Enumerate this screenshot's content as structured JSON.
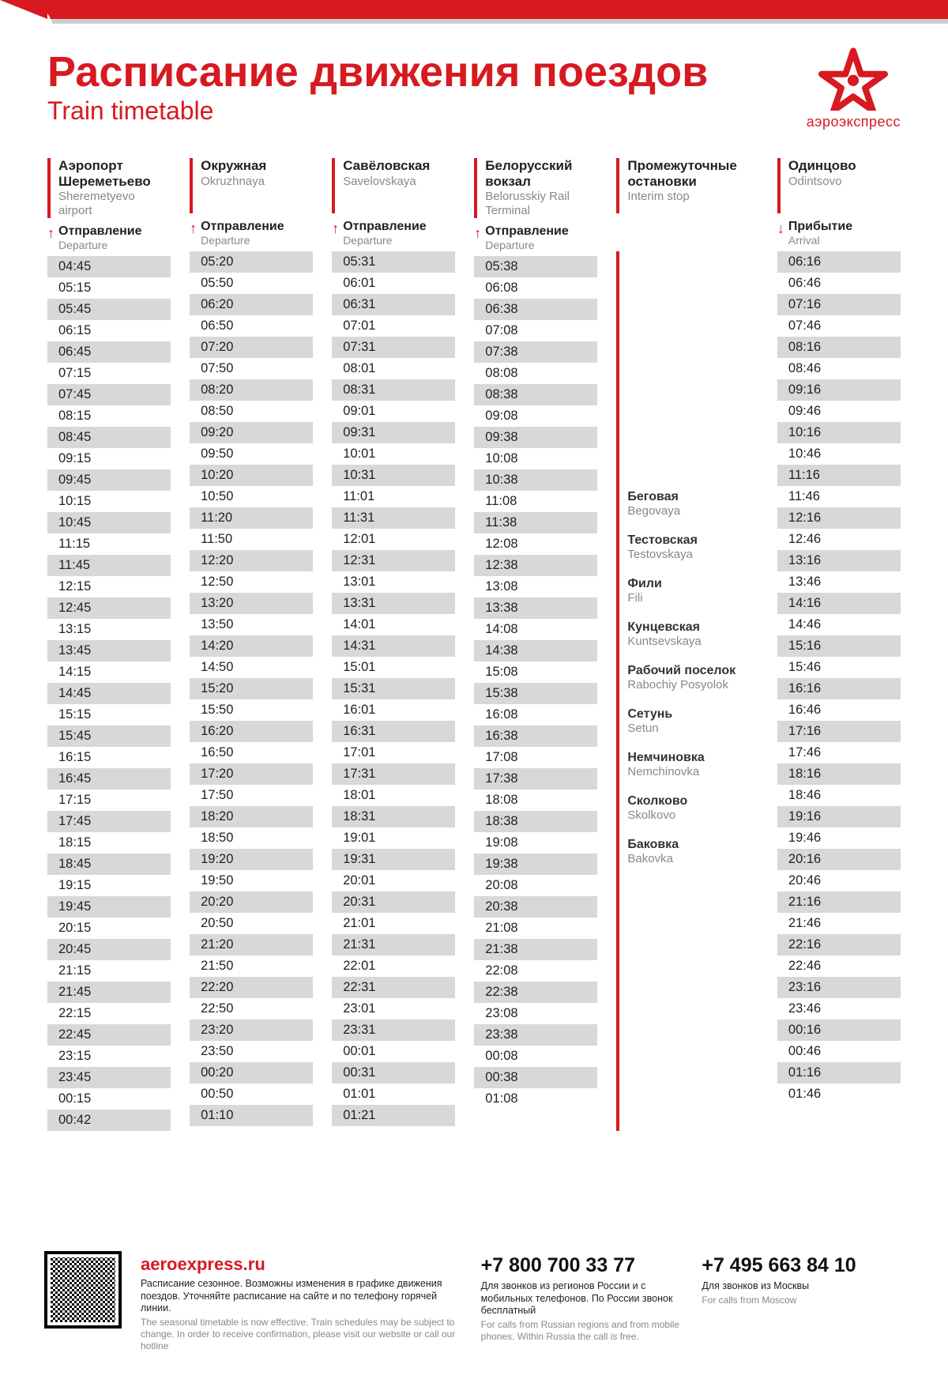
{
  "header": {
    "title_ru": "Расписание движения поездов",
    "title_en": "Train timetable",
    "logo_label": "аэроэкспресс",
    "brand_color": "#d71920"
  },
  "columns": [
    {
      "key": "sheremetyevo",
      "station_ru": "Аэропорт Шереметьево",
      "station_en": "Sheremetyevo airport",
      "sub_ru": "Отправление",
      "sub_en": "Departure",
      "arrow": "up",
      "times": [
        "04:45",
        "05:15",
        "05:45",
        "06:15",
        "06:45",
        "07:15",
        "07:45",
        "08:15",
        "08:45",
        "09:15",
        "09:45",
        "10:15",
        "10:45",
        "11:15",
        "11:45",
        "12:15",
        "12:45",
        "13:15",
        "13:45",
        "14:15",
        "14:45",
        "15:15",
        "15:45",
        "16:15",
        "16:45",
        "17:15",
        "17:45",
        "18:15",
        "18:45",
        "19:15",
        "19:45",
        "20:15",
        "20:45",
        "21:15",
        "21:45",
        "22:15",
        "22:45",
        "23:15",
        "23:45",
        "00:15",
        "00:42"
      ]
    },
    {
      "key": "okruzhnaya",
      "station_ru": "Окружная",
      "station_en": "Okruzhnaya",
      "sub_ru": "Отправление",
      "sub_en": "Departure",
      "arrow": "up",
      "times": [
        "05:20",
        "05:50",
        "06:20",
        "06:50",
        "07:20",
        "07:50",
        "08:20",
        "08:50",
        "09:20",
        "09:50",
        "10:20",
        "10:50",
        "11:20",
        "11:50",
        "12:20",
        "12:50",
        "13:20",
        "13:50",
        "14:20",
        "14:50",
        "15:20",
        "15:50",
        "16:20",
        "16:50",
        "17:20",
        "17:50",
        "18:20",
        "18:50",
        "19:20",
        "19:50",
        "20:20",
        "20:50",
        "21:20",
        "21:50",
        "22:20",
        "22:50",
        "23:20",
        "23:50",
        "00:20",
        "00:50",
        "01:10"
      ]
    },
    {
      "key": "savelovskaya",
      "station_ru": "Савёловская",
      "station_en": "Savelovskaya",
      "sub_ru": "Отправление",
      "sub_en": "Departure",
      "arrow": "up",
      "times": [
        "05:31",
        "06:01",
        "06:31",
        "07:01",
        "07:31",
        "08:01",
        "08:31",
        "09:01",
        "09:31",
        "10:01",
        "10:31",
        "11:01",
        "11:31",
        "12:01",
        "12:31",
        "13:01",
        "13:31",
        "14:01",
        "14:31",
        "15:01",
        "15:31",
        "16:01",
        "16:31",
        "17:01",
        "17:31",
        "18:01",
        "18:31",
        "19:01",
        "19:31",
        "20:01",
        "20:31",
        "21:01",
        "21:31",
        "22:01",
        "22:31",
        "23:01",
        "23:31",
        "00:01",
        "00:31",
        "01:01",
        "01:21"
      ]
    },
    {
      "key": "belorusskiy",
      "station_ru": "Белорусский вокзал",
      "station_en": "Belorusskiy Rail Terminal",
      "sub_ru": "Отправление",
      "sub_en": "Departure",
      "arrow": "up",
      "times": [
        "05:38",
        "06:08",
        "06:38",
        "07:08",
        "07:38",
        "08:08",
        "08:38",
        "09:08",
        "09:38",
        "10:08",
        "10:38",
        "11:08",
        "11:38",
        "12:08",
        "12:38",
        "13:08",
        "13:38",
        "14:08",
        "14:38",
        "15:08",
        "15:38",
        "16:08",
        "16:38",
        "17:08",
        "17:38",
        "18:08",
        "18:38",
        "19:08",
        "19:38",
        "20:08",
        "20:38",
        "21:08",
        "21:38",
        "22:08",
        "22:38",
        "23:08",
        "23:38",
        "00:08",
        "00:38",
        "01:08"
      ]
    },
    {
      "key": "interim",
      "station_ru": "Промежуточные остановки",
      "station_en": "Interim stop",
      "interim": true,
      "stops": [
        {
          "ru": "Беговая",
          "en": "Begovaya"
        },
        {
          "ru": "Тестовская",
          "en": "Testovskaya"
        },
        {
          "ru": "Фили",
          "en": "Fili"
        },
        {
          "ru": "Кунцевская",
          "en": "Kuntsevskaya"
        },
        {
          "ru": "Рабочий поселок",
          "en": "Rabochiy Posyolok"
        },
        {
          "ru": "Сетунь",
          "en": "Setun"
        },
        {
          "ru": "Немчиновка",
          "en": "Nemchinovka"
        },
        {
          "ru": "Сколково",
          "en": "Skolkovo"
        },
        {
          "ru": "Баковка",
          "en": "Bakovka"
        }
      ]
    },
    {
      "key": "odintsovo",
      "station_ru": "Одинцово",
      "station_en": "Odintsovo",
      "sub_ru": "Прибытие",
      "sub_en": "Arrival",
      "arrow": "down",
      "times": [
        "06:16",
        "06:46",
        "07:16",
        "07:46",
        "08:16",
        "08:46",
        "09:16",
        "09:46",
        "10:16",
        "10:46",
        "11:16",
        "11:46",
        "12:16",
        "12:46",
        "13:16",
        "13:46",
        "14:16",
        "14:46",
        "15:16",
        "15:46",
        "16:16",
        "16:46",
        "17:16",
        "17:46",
        "18:16",
        "18:46",
        "19:16",
        "19:46",
        "20:16",
        "20:46",
        "21:16",
        "21:46",
        "22:16",
        "22:46",
        "23:16",
        "23:46",
        "00:16",
        "00:46",
        "01:16",
        "01:46"
      ]
    }
  ],
  "footer": {
    "website": {
      "title": "aeroexpress.ru",
      "ru": "Расписание сезонное. Возможны изменения в графике движения поездов. Уточняйте расписание на сайте и по телефону горячей линии.",
      "en": "The seasonal timetable is now effective. Train schedules may be subject to change. In order to receive confirmation, please visit our website or call our hotline"
    },
    "phone1": {
      "number": "+7 800 700 33 77",
      "ru": "Для звонков из регионов России и с мобильных телефонов. По России звонок бесплатный",
      "en": "For calls from Russian regions and from mobile phones. Within Russia the call is free."
    },
    "phone2": {
      "number": "+7 495 663 84 10",
      "ru": "Для звонков из Москвы",
      "en": "For calls from Moscow"
    }
  }
}
